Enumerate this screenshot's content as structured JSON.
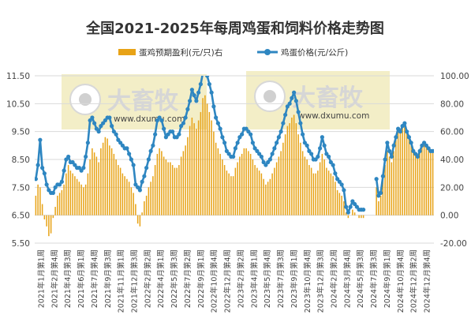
{
  "chart_data": {
    "type": "bar+line",
    "title": "全国2021-2025年每周鸡蛋和饲料价格走势图",
    "watermark": {
      "brand": "大畜牧",
      "domain": "www.dxumu.com"
    },
    "legend": {
      "placement": "top",
      "bar_label": "蛋鸡预期盈利(元/只)右",
      "line_label": "鸡蛋价格(元/公斤)"
    },
    "colors": {
      "bar": "#E8A317",
      "line": "#2E86C1",
      "marker": "#5DAE8B",
      "watermark_box": "#F3EEC7",
      "grid": "#D9D9D9"
    },
    "left_axis": {
      "ylim": [
        5.5,
        11.5
      ],
      "ticks": [
        "5.50",
        "6.50",
        "7.50",
        "8.50",
        "9.50",
        "10.50",
        "11.50"
      ]
    },
    "right_axis": {
      "ylim": [
        -20,
        100
      ],
      "ticks": [
        "-20.00",
        "0.00",
        "20.00",
        "40.00",
        "60.00",
        "80.00",
        "100.00"
      ]
    },
    "x_tick_labels": [
      "2021年1月第1周",
      "2021年2月第4周",
      "2021年4月第3周",
      "2021年6月第1周",
      "2021年7月第4周",
      "2021年9月第3周",
      "2021年11月第1周",
      "2021年12月第3周",
      "2022年2月第2周",
      "2022年4月第1周",
      "2022年5月第3周",
      "2022年7月第2周",
      "2022年9月第1周",
      "2022年10月第4周",
      "2022年12月第4周",
      "2023年2月第2周",
      "2023年4月第1周",
      "2023年5月第4周",
      "2023年7月第3周",
      "2023年9月第1周",
      "2023年10月第4周",
      "2023年12月第3周",
      "2024年2月第2周",
      "2024年3月第4周",
      "2024年5月第3周",
      "2024年7月第3周",
      "2024年9月第1周",
      "2024年10月第4周",
      "2024年12月第2周",
      "2024年12月第4周"
    ],
    "series": [
      {
        "name": "鸡蛋价格(元/公斤)",
        "axis": "left",
        "values": [
          7.8,
          8.3,
          9.2,
          8.2,
          8.0,
          7.6,
          7.4,
          7.3,
          7.3,
          7.5,
          7.6,
          7.6,
          7.7,
          8.1,
          8.5,
          8.6,
          8.4,
          8.4,
          8.3,
          8.2,
          8.2,
          8.1,
          8.2,
          8.6,
          9.1,
          9.9,
          10.0,
          9.8,
          9.6,
          9.5,
          9.7,
          9.8,
          9.9,
          10.0,
          10.0,
          9.7,
          9.5,
          9.4,
          9.2,
          9.1,
          9.0,
          8.9,
          8.9,
          8.7,
          8.5,
          8.3,
          7.6,
          7.5,
          7.4,
          7.7,
          7.9,
          8.2,
          8.5,
          8.8,
          9.0,
          9.4,
          9.9,
          10.0,
          9.9,
          9.6,
          9.3,
          9.4,
          9.5,
          9.5,
          9.3,
          9.3,
          9.4,
          9.7,
          9.8,
          10.0,
          10.3,
          10.6,
          11.0,
          10.8,
          10.6,
          10.9,
          11.2,
          11.6,
          11.7,
          11.5,
          11.2,
          10.9,
          10.4,
          10.0,
          9.8,
          9.6,
          9.3,
          9.1,
          8.8,
          8.7,
          8.6,
          8.6,
          8.9,
          9.1,
          9.3,
          9.4,
          9.6,
          9.6,
          9.5,
          9.4,
          9.1,
          8.9,
          8.8,
          8.7,
          8.6,
          8.4,
          8.3,
          8.4,
          8.5,
          8.7,
          8.9,
          9.1,
          9.3,
          9.5,
          9.8,
          10.1,
          10.4,
          10.5,
          10.7,
          10.9,
          10.6,
          10.2,
          9.8,
          9.4,
          9.1,
          9.0,
          8.8,
          8.7,
          8.5,
          8.5,
          8.6,
          8.9,
          9.3,
          9.0,
          8.7,
          8.6,
          8.4,
          8.3,
          8.0,
          7.8,
          7.7,
          7.6,
          7.4,
          6.8,
          6.6,
          6.8,
          7.0,
          6.9,
          6.8,
          6.7,
          6.7,
          6.7,
          null,
          null,
          null,
          null,
          null,
          7.8,
          7.2,
          7.3,
          7.9,
          8.5,
          9.1,
          8.8,
          8.6,
          9.0,
          9.3,
          9.6,
          9.5,
          9.7,
          9.8,
          9.5,
          9.3,
          9.1,
          8.8,
          8.7,
          8.6,
          8.8,
          9.0,
          9.1,
          9.0,
          8.9,
          8.8,
          8.8
        ]
      },
      {
        "name": "蛋鸡预期盈利(元/只)右",
        "axis": "right",
        "values": [
          14,
          22,
          20,
          8,
          -3,
          -8,
          -15,
          -13,
          -2,
          6,
          14,
          16,
          18,
          22,
          30,
          36,
          32,
          30,
          28,
          26,
          24,
          22,
          20,
          22,
          30,
          40,
          48,
          45,
          42,
          38,
          48,
          52,
          56,
          55,
          50,
          48,
          44,
          40,
          36,
          34,
          30,
          28,
          26,
          24,
          20,
          16,
          8,
          -6,
          -8,
          2,
          10,
          14,
          20,
          24,
          28,
          36,
          44,
          48,
          46,
          42,
          40,
          38,
          38,
          36,
          34,
          34,
          36,
          42,
          46,
          50,
          56,
          64,
          70,
          66,
          62,
          68,
          74,
          84,
          86,
          80,
          74,
          68,
          60,
          52,
          48,
          44,
          40,
          36,
          32,
          30,
          28,
          28,
          34,
          38,
          42,
          44,
          48,
          48,
          46,
          44,
          40,
          36,
          34,
          32,
          30,
          26,
          22,
          24,
          26,
          30,
          34,
          38,
          42,
          46,
          52,
          58,
          64,
          66,
          70,
          72,
          66,
          58,
          52,
          46,
          42,
          40,
          36,
          34,
          30,
          30,
          32,
          38,
          44,
          40,
          34,
          32,
          30,
          28,
          24,
          18,
          16,
          14,
          10,
          2,
          -2,
          0,
          4,
          2,
          0,
          -2,
          -2,
          -2,
          null,
          null,
          null,
          null,
          null,
          20,
          10,
          14,
          26,
          36,
          46,
          42,
          38,
          46,
          54,
          62,
          60,
          64,
          66,
          60,
          56,
          52,
          46,
          44,
          42,
          46,
          50,
          52,
          50,
          48,
          46,
          46
        ]
      }
    ]
  }
}
